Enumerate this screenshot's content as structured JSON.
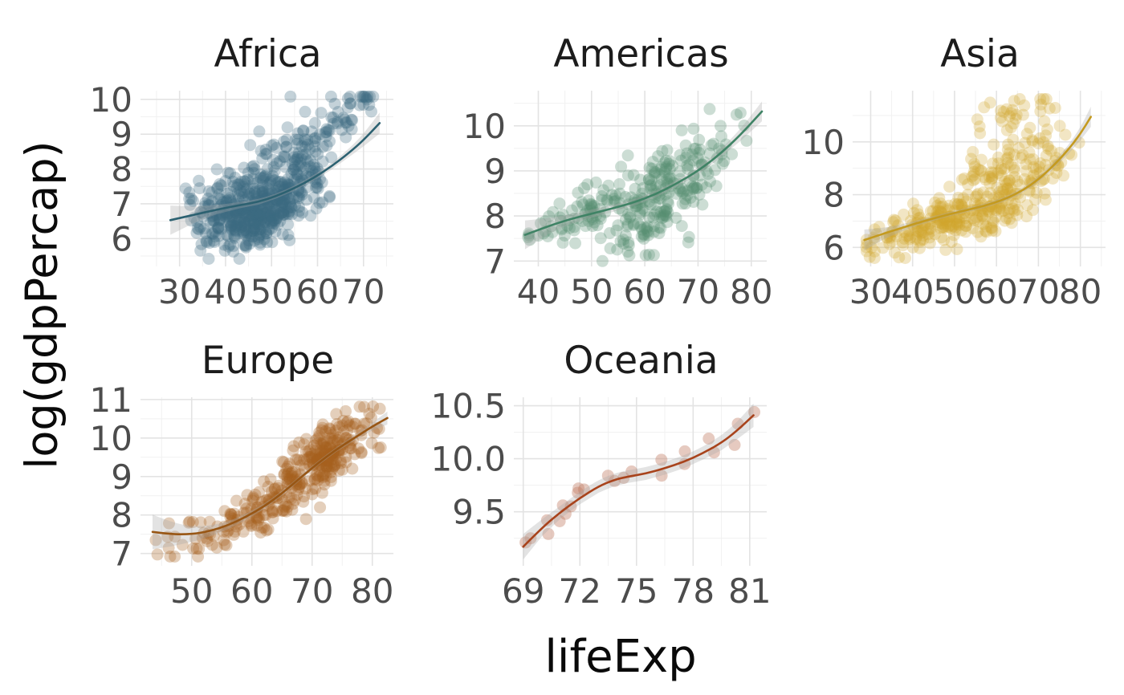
{
  "figure": {
    "x_axis_label": "lifeExp",
    "y_axis_label": "log(gdpPercap)",
    "background_color": "#ffffff",
    "grid_major_color": "#e3e3e3",
    "grid_minor_color": "#f1f1f1",
    "tick_label_color": "#4c4c4c",
    "facet_title_color": "#1c1c1c",
    "ribbon_color": "#a8a8a8",
    "ribbon_opacity": 0.32
  },
  "chart_data": [
    {
      "type": "scatter",
      "facet": "Africa",
      "point_color": "#3d6a82",
      "line_color": "#2c6171",
      "point_alpha": 0.3,
      "x_ticks": [
        30,
        40,
        50,
        60,
        70
      ],
      "y_ticks": [
        6,
        7,
        8,
        9,
        10
      ],
      "x_range": [
        21.5,
        76.5
      ],
      "y_range": [
        5.2,
        10.25
      ],
      "y_clamp": [
        5.42,
        10.08
      ],
      "n_points": 624,
      "seed": 11,
      "trend": [
        [
          28,
          6.53
        ],
        [
          33,
          6.68
        ],
        [
          38,
          6.83
        ],
        [
          43,
          6.96
        ],
        [
          47,
          7.05
        ],
        [
          51,
          7.22
        ],
        [
          55,
          7.45
        ],
        [
          59,
          7.73
        ],
        [
          63,
          8.07
        ],
        [
          67,
          8.48
        ],
        [
          70,
          8.83
        ],
        [
          73.5,
          9.32
        ]
      ],
      "ribbon_halfwidth": [
        0.42,
        0.24,
        0.13,
        0.09,
        0.08,
        0.07,
        0.07,
        0.08,
        0.09,
        0.12,
        0.18,
        0.3
      ],
      "clusters": [
        {
          "n": 400,
          "x": [
            30,
            64
          ],
          "shape": "mid",
          "dy": -0.12,
          "sd": 0.52
        },
        {
          "n": 120,
          "x": [
            44,
            73.5
          ],
          "shape": "mid",
          "dy": 1.15,
          "sd": 0.5
        },
        {
          "n": 104,
          "x": [
            33,
            58
          ],
          "shape": "mid",
          "dy": -0.55,
          "sd": 0.3
        }
      ]
    },
    {
      "type": "scatter",
      "facet": "Americas",
      "point_color": "#55906f",
      "line_color": "#3f8365",
      "point_alpha": 0.3,
      "x_ticks": [
        40,
        50,
        60,
        70,
        80
      ],
      "y_ticks": [
        7,
        8,
        9,
        10
      ],
      "x_range": [
        35.4,
        82.9
      ],
      "y_range": [
        6.88,
        10.78
      ],
      "y_clamp": [
        7.0,
        10.62
      ],
      "n_points": 300,
      "seed": 22,
      "trend": [
        [
          37.5,
          7.58
        ],
        [
          42,
          7.78
        ],
        [
          46,
          7.93
        ],
        [
          50,
          8.05
        ],
        [
          54,
          8.17
        ],
        [
          58,
          8.3
        ],
        [
          62,
          8.48
        ],
        [
          66,
          8.72
        ],
        [
          70,
          9.0
        ],
        [
          74,
          9.36
        ],
        [
          78,
          9.8
        ],
        [
          82,
          10.32
        ]
      ],
      "ribbon_halfwidth": [
        0.32,
        0.17,
        0.11,
        0.09,
        0.08,
        0.07,
        0.07,
        0.07,
        0.08,
        0.09,
        0.13,
        0.22
      ],
      "clusters": [
        {
          "n": 215,
          "x": [
            44,
            80.5
          ],
          "shape": "mid",
          "dy": 0.05,
          "sd": 0.4
        },
        {
          "n": 45,
          "x": [
            37.6,
            52
          ],
          "shape": "uniform",
          "dy": 0.0,
          "sd": 0.3
        },
        {
          "n": 40,
          "x": [
            52,
            72
          ],
          "shape": "mid",
          "dy": -0.75,
          "sd": 0.3
        }
      ]
    },
    {
      "type": "scatter",
      "facet": "Asia",
      "point_color": "#d0a52c",
      "line_color": "#c49a1f",
      "point_alpha": 0.28,
      "x_ticks": [
        30,
        40,
        50,
        60,
        70,
        80
      ],
      "y_ticks": [
        6,
        8,
        10
      ],
      "x_range": [
        25.7,
        86
      ],
      "y_range": [
        5.28,
        11.94
      ],
      "y_clamp": [
        5.6,
        11.62
      ],
      "n_points": 396,
      "seed": 33,
      "trend": [
        [
          28.5,
          6.28
        ],
        [
          33,
          6.52
        ],
        [
          37,
          6.72
        ],
        [
          41,
          6.92
        ],
        [
          45,
          7.1
        ],
        [
          49,
          7.27
        ],
        [
          53,
          7.42
        ],
        [
          57,
          7.57
        ],
        [
          61,
          7.77
        ],
        [
          65,
          8.05
        ],
        [
          69,
          8.45
        ],
        [
          73,
          9.0
        ],
        [
          77,
          9.68
        ],
        [
          80,
          10.3
        ],
        [
          82.5,
          10.95
        ]
      ],
      "ribbon_halfwidth": [
        0.4,
        0.22,
        0.14,
        0.1,
        0.09,
        0.08,
        0.08,
        0.08,
        0.08,
        0.09,
        0.1,
        0.12,
        0.16,
        0.24,
        0.38
      ],
      "clusters": [
        {
          "n": 250,
          "x": [
            31,
            80
          ],
          "shape": "mid",
          "dy": -0.15,
          "sd": 0.5
        },
        {
          "n": 70,
          "x": [
            46,
            80
          ],
          "shape": "mid",
          "dy": 1.3,
          "sd": 0.55
        },
        {
          "n": 26,
          "x": [
            55,
            73
          ],
          "shape": "uniform",
          "dy": 3.1,
          "sd": 0.4
        },
        {
          "n": 50,
          "x": [
            28.8,
            46
          ],
          "shape": "uniform",
          "dy": -0.25,
          "sd": 0.3
        }
      ]
    },
    {
      "type": "scatter",
      "facet": "Europe",
      "point_color": "#a4601e",
      "line_color": "#985614",
      "point_alpha": 0.3,
      "x_ticks": [
        50,
        60,
        70,
        80
      ],
      "y_ticks": [
        7,
        8,
        9,
        10,
        11
      ],
      "x_range": [
        41.5,
        83.5
      ],
      "y_range": [
        6.68,
        11.06
      ],
      "y_clamp": [
        6.92,
        10.82
      ],
      "n_points": 360,
      "seed": 44,
      "trend": [
        [
          43.5,
          7.56
        ],
        [
          46.5,
          7.5
        ],
        [
          50,
          7.5
        ],
        [
          53,
          7.58
        ],
        [
          56,
          7.73
        ],
        [
          59,
          7.95
        ],
        [
          62,
          8.22
        ],
        [
          65,
          8.56
        ],
        [
          68,
          8.96
        ],
        [
          71,
          9.35
        ],
        [
          74,
          9.7
        ],
        [
          77,
          10.0
        ],
        [
          80,
          10.3
        ],
        [
          82.5,
          10.52
        ]
      ],
      "ribbon_halfwidth": [
        0.45,
        0.32,
        0.2,
        0.14,
        0.1,
        0.08,
        0.07,
        0.06,
        0.06,
        0.06,
        0.06,
        0.07,
        0.1,
        0.17
      ],
      "clusters": [
        {
          "n": 245,
          "x": [
            61,
            81.8
          ],
          "shape": "mid",
          "dy": 0.02,
          "sd": 0.38
        },
        {
          "n": 75,
          "x": [
            52,
            69
          ],
          "shape": "mid",
          "dy": -0.05,
          "sd": 0.32
        },
        {
          "n": 40,
          "x": [
            43.6,
            63
          ],
          "shape": "uniform",
          "dy": -0.15,
          "sd": 0.28
        }
      ]
    },
    {
      "type": "scatter",
      "facet": "Oceania",
      "point_color": "#c07b62",
      "line_color": "#a8431c",
      "point_alpha": 0.4,
      "x_ticks": [
        69,
        72,
        75,
        78,
        81
      ],
      "y_ticks": [
        9.5,
        10.0,
        10.5
      ],
      "y_tick_labels": [
        "9.5",
        "10.0",
        "10.5"
      ],
      "x_range": [
        68.5,
        81.9
      ],
      "y_range": [
        8.99,
        10.58
      ],
      "y_clamp": [
        9.0,
        10.5
      ],
      "n_points": 24,
      "seed": 55,
      "trend": [
        [
          69,
          9.17
        ],
        [
          70,
          9.35
        ],
        [
          71,
          9.5
        ],
        [
          72,
          9.63
        ],
        [
          73,
          9.74
        ],
        [
          73.8,
          9.8
        ],
        [
          74.5,
          9.83
        ],
        [
          75.5,
          9.86
        ],
        [
          76.5,
          9.91
        ],
        [
          77.5,
          9.97
        ],
        [
          78.5,
          10.05
        ],
        [
          79.5,
          10.15
        ],
        [
          80.3,
          10.26
        ],
        [
          81.2,
          10.41
        ]
      ],
      "ribbon_halfwidth": [
        0.12,
        0.08,
        0.06,
        0.06,
        0.06,
        0.06,
        0.06,
        0.06,
        0.06,
        0.06,
        0.06,
        0.07,
        0.08,
        0.11
      ],
      "points": [
        [
          69.12,
          9.21
        ],
        [
          70.33,
          9.29
        ],
        [
          70.93,
          9.41
        ],
        [
          71.1,
          9.56
        ],
        [
          71.93,
          9.72
        ],
        [
          73.49,
          9.84
        ],
        [
          74.74,
          9.88
        ],
        [
          76.32,
          9.99
        ],
        [
          77.56,
          10.07
        ],
        [
          78.83,
          10.19
        ],
        [
          80.37,
          10.33
        ],
        [
          81.24,
          10.44
        ],
        [
          69.39,
          9.25
        ],
        [
          70.26,
          9.42
        ],
        [
          71.24,
          9.48
        ],
        [
          71.52,
          9.55
        ],
        [
          71.89,
          9.68
        ],
        [
          72.22,
          9.71
        ],
        [
          73.84,
          9.79
        ],
        [
          74.32,
          9.82
        ],
        [
          76.33,
          9.84
        ],
        [
          77.55,
          9.95
        ],
        [
          79.11,
          10.06
        ],
        [
          80.2,
          10.13
        ]
      ]
    }
  ]
}
